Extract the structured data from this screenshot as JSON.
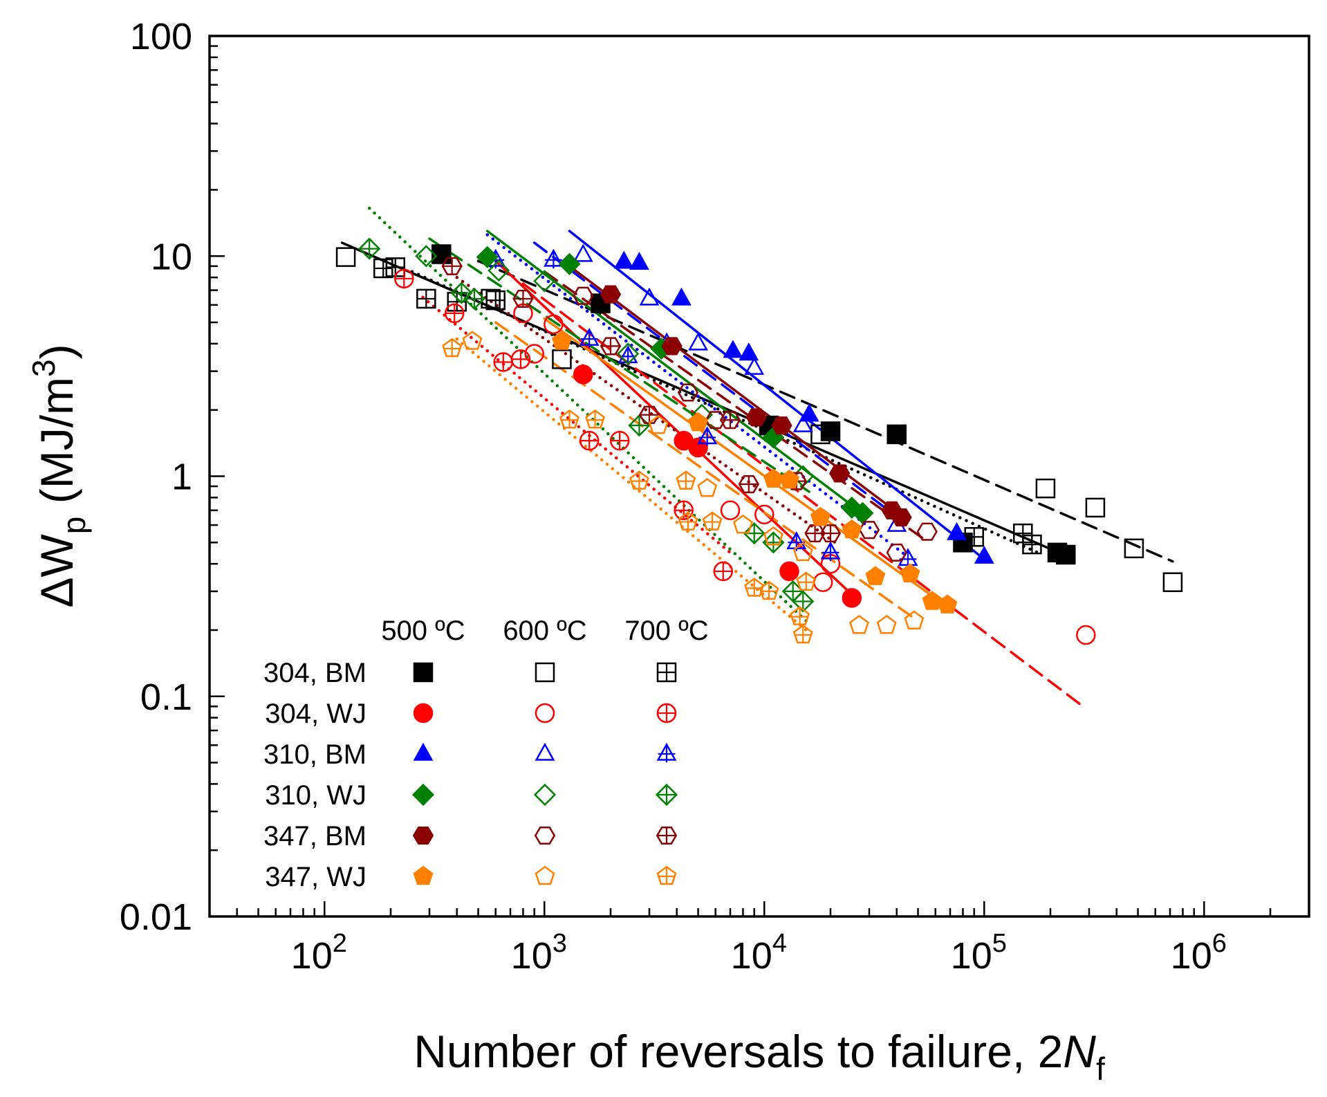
{
  "chart_data": {
    "type": "scatter",
    "x_scale": "log",
    "y_scale": "log",
    "xlim": [
      30,
      3000000
    ],
    "ylim": [
      0.01,
      100
    ],
    "xlabel": {
      "main": "Number of reversals to failure, 2",
      "italic": "N",
      "sub": "f"
    },
    "ylabel": {
      "prefix": "ΔW",
      "sub": "p",
      "unit": " (MJ/m",
      "sup": "3",
      "close": ")"
    },
    "x_ticks": [
      {
        "value": 100,
        "base": "10",
        "exp": "2"
      },
      {
        "value": 1000,
        "base": "10",
        "exp": "3"
      },
      {
        "value": 10000,
        "base": "10",
        "exp": "4"
      },
      {
        "value": 100000,
        "base": "10",
        "exp": "5"
      },
      {
        "value": 1000000,
        "base": "10",
        "exp": "6"
      }
    ],
    "y_ticks": [
      {
        "value": 0.01,
        "label": "0.01"
      },
      {
        "value": 0.1,
        "label": "0.1"
      },
      {
        "value": 1,
        "label": "1"
      },
      {
        "value": 10,
        "label": "10"
      },
      {
        "value": 100,
        "label": "100"
      }
    ],
    "temperatures": [
      "500 ºC",
      "600 ºC",
      "700 ºC"
    ],
    "materials": [
      {
        "label": "304, BM",
        "color": "#000000",
        "shape": "square"
      },
      {
        "label": "304, WJ",
        "color": "#ff0000",
        "shape": "circle"
      },
      {
        "label": "310, BM",
        "color": "#0000ff",
        "shape": "triangle"
      },
      {
        "label": "310, WJ",
        "color": "#008000",
        "shape": "diamond"
      },
      {
        "label": "347, BM",
        "color": "#8b0000",
        "shape": "hexagon"
      },
      {
        "label": "347, WJ",
        "color": "#ff8000",
        "shape": "pentagon"
      }
    ],
    "series": [
      {
        "material": 0,
        "temp": 0,
        "points": [
          [
            340,
            10.2
          ],
          [
            1800,
            6.1
          ],
          [
            10500,
            1.7
          ],
          [
            20000,
            1.6
          ],
          [
            40000,
            1.55
          ],
          [
            80000,
            0.5
          ],
          [
            215000,
            0.45
          ],
          [
            235000,
            0.44
          ]
        ]
      },
      {
        "material": 0,
        "temp": 1,
        "points": [
          [
            125,
            9.9
          ],
          [
            570,
            6.4
          ],
          [
            1200,
            3.4
          ],
          [
            18000,
            1.55
          ],
          [
            190000,
            0.88
          ],
          [
            320000,
            0.72
          ],
          [
            480000,
            0.47
          ],
          [
            720000,
            0.33
          ]
        ]
      },
      {
        "material": 0,
        "temp": 2,
        "points": [
          [
            185,
            8.8
          ],
          [
            210,
            8.9
          ],
          [
            290,
            6.4
          ],
          [
            400,
            6.2
          ],
          [
            600,
            6.3
          ],
          [
            90000,
            0.53
          ],
          [
            150000,
            0.55
          ],
          [
            165000,
            0.49
          ]
        ]
      },
      {
        "material": 1,
        "temp": 0,
        "points": [
          [
            1500,
            2.9
          ],
          [
            4300,
            1.45
          ],
          [
            5000,
            1.35
          ],
          [
            13000,
            0.37
          ],
          [
            25000,
            0.28
          ]
        ]
      },
      {
        "material": 1,
        "temp": 1,
        "points": [
          [
            800,
            5.5
          ],
          [
            900,
            3.6
          ],
          [
            1100,
            4.9
          ],
          [
            7000,
            0.7
          ],
          [
            10000,
            0.67
          ],
          [
            20000,
            0.4
          ],
          [
            18500,
            0.33
          ],
          [
            290000,
            0.19
          ]
        ]
      },
      {
        "material": 1,
        "temp": 2,
        "points": [
          [
            230,
            7.9
          ],
          [
            390,
            5.5
          ],
          [
            650,
            3.3
          ],
          [
            780,
            3.4
          ],
          [
            1600,
            1.45
          ],
          [
            2200,
            1.45
          ],
          [
            4300,
            0.7
          ],
          [
            6500,
            0.37
          ]
        ]
      },
      {
        "material": 2,
        "temp": 0,
        "points": [
          [
            2300,
            9.4
          ],
          [
            2700,
            9.3
          ],
          [
            4200,
            6.4
          ],
          [
            7200,
            3.7
          ],
          [
            8500,
            3.6
          ],
          [
            16000,
            1.9
          ],
          [
            75000,
            0.55
          ],
          [
            100000,
            0.43
          ]
        ]
      },
      {
        "material": 2,
        "temp": 1,
        "points": [
          [
            1500,
            10.1
          ],
          [
            3000,
            6.4
          ],
          [
            3600,
            4
          ],
          [
            5000,
            4
          ],
          [
            9000,
            3.1
          ],
          [
            15000,
            1.7
          ],
          [
            40000,
            0.6
          ]
        ]
      },
      {
        "material": 2,
        "temp": 2,
        "points": [
          [
            600,
            9.6
          ],
          [
            1100,
            9.6
          ],
          [
            1600,
            4.2
          ],
          [
            2400,
            3.5
          ],
          [
            5500,
            1.5
          ],
          [
            14000,
            0.5
          ],
          [
            20000,
            0.45
          ],
          [
            45000,
            0.42
          ]
        ]
      },
      {
        "material": 3,
        "temp": 0,
        "points": [
          [
            550,
            9.9
          ],
          [
            1300,
            9.2
          ],
          [
            3400,
            3.8
          ],
          [
            11000,
            1.5
          ],
          [
            25000,
            0.72
          ],
          [
            28000,
            0.68
          ]
        ]
      },
      {
        "material": 3,
        "temp": 1,
        "points": [
          [
            290,
            10
          ],
          [
            620,
            8.6
          ],
          [
            1000,
            7.7
          ],
          [
            2400,
            3.6
          ],
          [
            5200,
            1.9
          ],
          [
            15000,
            1
          ]
        ]
      },
      {
        "material": 3,
        "temp": 2,
        "points": [
          [
            160,
            10.8
          ],
          [
            420,
            6.8
          ],
          [
            480,
            6.4
          ],
          [
            2700,
            1.7
          ],
          [
            9000,
            0.55
          ],
          [
            11000,
            0.5
          ],
          [
            13500,
            0.3
          ],
          [
            15000,
            0.27
          ]
        ]
      },
      {
        "material": 4,
        "temp": 0,
        "points": [
          [
            2000,
            6.7
          ],
          [
            3800,
            3.9
          ],
          [
            9200,
            1.85
          ],
          [
            12000,
            1.7
          ],
          [
            22000,
            1.03
          ],
          [
            38000,
            0.7
          ],
          [
            42000,
            0.65
          ]
        ]
      },
      {
        "material": 4,
        "temp": 1,
        "points": [
          [
            1500,
            6.6
          ],
          [
            4500,
            2.4
          ],
          [
            6000,
            1.8
          ],
          [
            14000,
            0.95
          ],
          [
            30000,
            0.57
          ],
          [
            40000,
            0.45
          ],
          [
            55000,
            0.56
          ]
        ]
      },
      {
        "material": 4,
        "temp": 2,
        "points": [
          [
            380,
            9
          ],
          [
            800,
            6.4
          ],
          [
            2000,
            3.9
          ],
          [
            3000,
            1.9
          ],
          [
            7000,
            1.8
          ],
          [
            8500,
            0.92
          ],
          [
            14000,
            0.95
          ],
          [
            17000,
            0.55
          ],
          [
            20000,
            0.55
          ]
        ]
      },
      {
        "material": 5,
        "temp": 0,
        "points": [
          [
            1200,
            4.1
          ],
          [
            5000,
            1.75
          ],
          [
            11000,
            0.97
          ],
          [
            13000,
            0.96
          ],
          [
            18000,
            0.65
          ],
          [
            25000,
            0.57
          ],
          [
            32000,
            0.35
          ],
          [
            46000,
            0.36
          ],
          [
            58000,
            0.27
          ],
          [
            68000,
            0.26
          ]
        ]
      },
      {
        "material": 5,
        "temp": 1,
        "points": [
          [
            470,
            4.1
          ],
          [
            3300,
            1.7
          ],
          [
            5500,
            0.88
          ],
          [
            8000,
            0.6
          ],
          [
            11000,
            0.53
          ],
          [
            15000,
            0.45
          ],
          [
            27000,
            0.21
          ],
          [
            36000,
            0.21
          ],
          [
            48000,
            0.22
          ]
        ]
      },
      {
        "material": 5,
        "temp": 2,
        "points": [
          [
            380,
            3.8
          ],
          [
            1300,
            1.8
          ],
          [
            1700,
            1.8
          ],
          [
            2700,
            0.95
          ],
          [
            4400,
            0.95
          ],
          [
            4500,
            0.62
          ],
          [
            5800,
            0.62
          ],
          [
            9000,
            0.31
          ],
          [
            10500,
            0.3
          ],
          [
            14500,
            0.23
          ],
          [
            15000,
            0.19
          ],
          [
            15500,
            0.33
          ]
        ]
      }
    ],
    "fits": [
      {
        "material": 0,
        "temp": 0,
        "from": [
          120,
          11.5
        ],
        "to": [
          230000,
          0.44
        ]
      },
      {
        "material": 0,
        "temp": 1,
        "from": [
          500,
          9.5
        ],
        "to": [
          720000,
          0.41
        ]
      },
      {
        "material": 0,
        "temp": 2,
        "from": [
          250,
          8.5
        ],
        "to": [
          175000,
          0.45
        ]
      },
      {
        "material": 1,
        "temp": 0,
        "from": [
          600,
          9.5
        ],
        "to": [
          26000,
          0.28
        ]
      },
      {
        "material": 1,
        "temp": 1,
        "from": [
          800,
          7.5
        ],
        "to": [
          290000,
          0.088
        ]
      },
      {
        "material": 1,
        "temp": 2,
        "from": [
          280,
          6.5
        ],
        "to": [
          7000,
          0.45
        ]
      },
      {
        "material": 2,
        "temp": 0,
        "from": [
          1300,
          13
        ],
        "to": [
          100000,
          0.42
        ]
      },
      {
        "material": 2,
        "temp": 1,
        "from": [
          900,
          11.5
        ],
        "to": [
          45000,
          0.6
        ]
      },
      {
        "material": 2,
        "temp": 2,
        "from": [
          550,
          12.5
        ],
        "to": [
          45000,
          0.43
        ]
      },
      {
        "material": 3,
        "temp": 0,
        "from": [
          550,
          13
        ],
        "to": [
          29000,
          0.66
        ]
      },
      {
        "material": 3,
        "temp": 1,
        "from": [
          300,
          12
        ],
        "to": [
          16000,
          0.85
        ]
      },
      {
        "material": 3,
        "temp": 2,
        "from": [
          160,
          16.5
        ],
        "to": [
          15500,
          0.22
        ]
      },
      {
        "material": 4,
        "temp": 0,
        "from": [
          1300,
          9
        ],
        "to": [
          45000,
          0.63
        ]
      },
      {
        "material": 4,
        "temp": 1,
        "from": [
          1000,
          8.5
        ],
        "to": [
          56000,
          0.5
        ]
      },
      {
        "material": 4,
        "temp": 2,
        "from": [
          400,
          8
        ],
        "to": [
          21000,
          0.5
        ]
      },
      {
        "material": 5,
        "temp": 0,
        "from": [
          1000,
          5.2
        ],
        "to": [
          70000,
          0.25
        ]
      },
      {
        "material": 5,
        "temp": 1,
        "from": [
          600,
          5
        ],
        "to": [
          50000,
          0.22
        ]
      },
      {
        "material": 5,
        "temp": 2,
        "from": [
          400,
          4.2
        ],
        "to": [
          15500,
          0.2
        ]
      }
    ],
    "fit_styles": [
      "solid",
      "dashed",
      "dotted"
    ]
  }
}
